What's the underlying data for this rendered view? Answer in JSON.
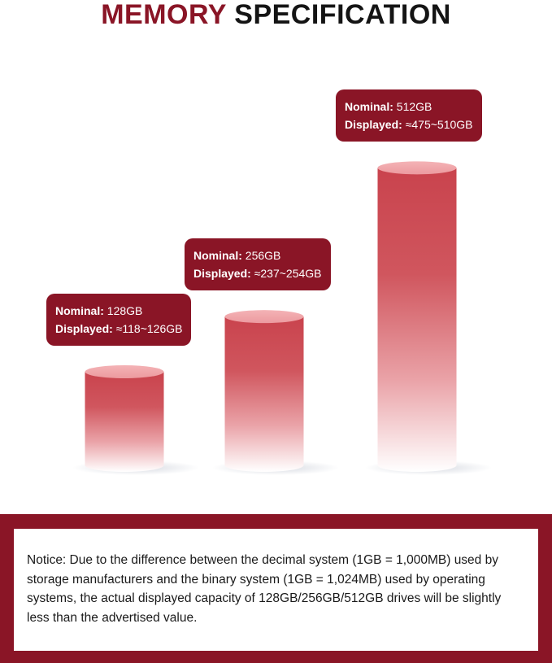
{
  "header": {
    "title_part1": "MEMORY",
    "title_part2": "SPECIFICATION"
  },
  "colors": {
    "accent": "#8a1526",
    "bar_top": "#c9434d",
    "bar_bottom": "#ffffff"
  },
  "chart_data": {
    "type": "bar",
    "title": "MEMORY SPECIFICATION",
    "categories": [
      "128GB",
      "256GB",
      "512GB"
    ],
    "values": [
      128,
      256,
      512
    ],
    "series": [
      {
        "values": [
          128,
          256,
          512
        ]
      }
    ],
    "annotations": [
      {
        "nominal_label": "Nominal:",
        "nominal_value": "128GB",
        "displayed_label": "Displayed:",
        "displayed_value": "≈118~126GB"
      },
      {
        "nominal_label": "Nominal:",
        "nominal_value": "256GB",
        "displayed_label": "Displayed:",
        "displayed_value": "≈237~254GB"
      },
      {
        "nominal_label": "Nominal:",
        "nominal_value": "512GB",
        "displayed_label": "Displayed:",
        "displayed_value": "≈475~510GB"
      }
    ],
    "grid": false,
    "legend": "none"
  },
  "notice": {
    "text": "Notice: Due to the difference between the decimal system (1GB = 1,000MB) used by storage manufacturers and the binary system (1GB = 1,024MB) used by operating systems, the actual displayed capacity of 128GB/256GB/512GB drives will be slightly less than the advertised value."
  }
}
